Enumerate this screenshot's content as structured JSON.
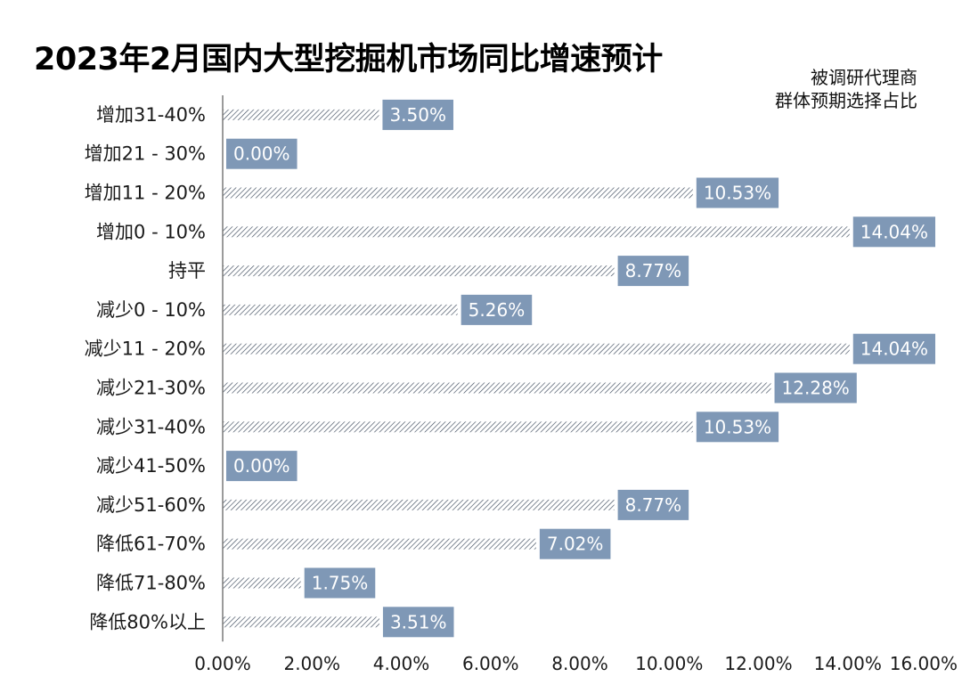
{
  "chart_data": {
    "type": "bar",
    "orientation": "horizontal",
    "title": "2023年2月国内大型挖掘机市场同比增速预计",
    "note_lines": [
      "被调研代理商",
      "群体预期选择占比"
    ],
    "categories": [
      "增加31-40%",
      "增加21 - 30%",
      "增加11 - 20%",
      "增加0 - 10%",
      "持平",
      "减少0 - 10%",
      "减少11 - 20%",
      "减少21-30%",
      "减少31-40%",
      "减少41-50%",
      "减少51-60%",
      "降低61-70%",
      "降低71-80%",
      "降低80%以上"
    ],
    "values": [
      3.5,
      0.0,
      10.53,
      14.04,
      8.77,
      5.26,
      14.04,
      12.28,
      10.53,
      0.0,
      8.77,
      7.02,
      1.75,
      3.51
    ],
    "data_labels": [
      "3.50%",
      "0.00%",
      "10.53%",
      "14.04%",
      "8.77%",
      "5.26%",
      "14.04%",
      "12.28%",
      "10.53%",
      "0.00%",
      "8.77%",
      "7.02%",
      "1.75%",
      "3.51%"
    ],
    "xticks": [
      "0.00%",
      "2.00%",
      "4.00%",
      "6.00%",
      "8.00%",
      "10.00%",
      "12.00%",
      "14.00%",
      "16.00%"
    ],
    "xlim": [
      0,
      16
    ],
    "grid": false,
    "colors": {
      "bar_stripe": "#3d4a5c",
      "label_bg": "#7f98b6",
      "label_text": "#ffffff",
      "axis": "#7a7a7a"
    }
  }
}
